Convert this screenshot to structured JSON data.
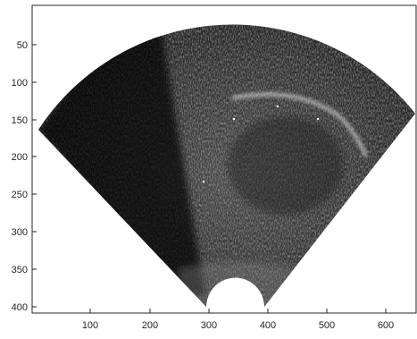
{
  "image": {
    "description_type": "ultrasound-sector-scan",
    "background_color": "#000000",
    "frame_color": "#262626",
    "sector_tissue_color": "#3a3a3a",
    "highlight_color": "#d9d9d9"
  },
  "axes": {
    "x_tick_labels": [
      "100",
      "200",
      "300",
      "400",
      "500",
      "600"
    ],
    "y_tick_labels": [
      "50",
      "100",
      "150",
      "200",
      "250",
      "300",
      "350",
      "400"
    ]
  }
}
